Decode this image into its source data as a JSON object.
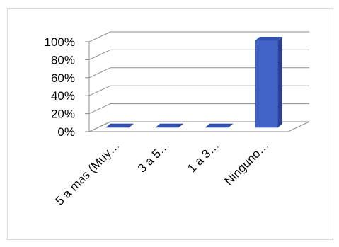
{
  "chart_data": {
    "type": "bar",
    "title": "",
    "xlabel": "",
    "ylabel": "",
    "categories": [
      "5 a mas (Muy…",
      "3 a 5…",
      "1 a 3…",
      "Ninguno…"
    ],
    "values": [
      0,
      0,
      0,
      100
    ],
    "ylim": [
      0,
      100
    ],
    "yticks": [
      "0%",
      "20%",
      "40%",
      "60%",
      "80%",
      "100%"
    ],
    "style": "3d-column",
    "grid": true,
    "legend": "none",
    "colors": {
      "bar_front": "#4163c7",
      "bar_side": "#2c4191",
      "bar_top": "#3351b0",
      "grid": "#8c8c8c"
    }
  }
}
